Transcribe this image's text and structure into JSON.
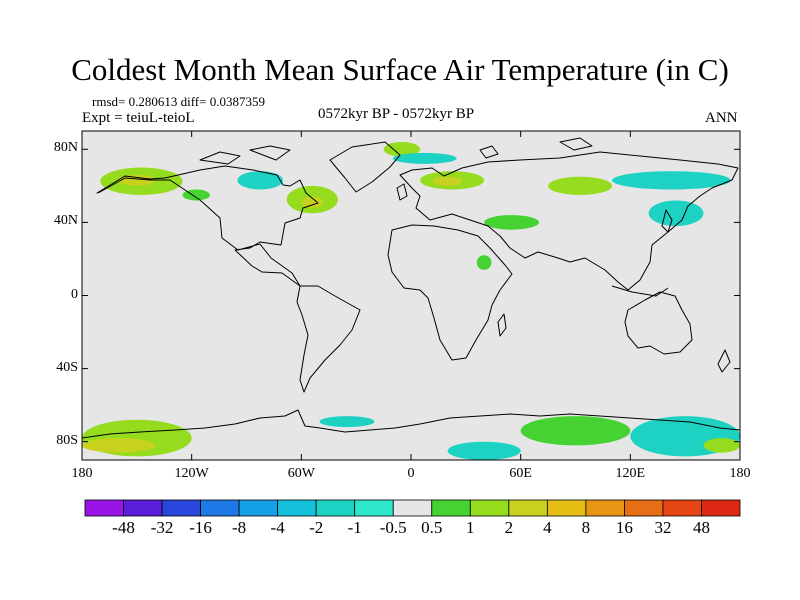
{
  "header": {
    "title": "Coldest Month Mean Surface Air Temperature (in C)",
    "stats": "rmsd= 0.280613  diff= 0.0387359",
    "expt": "Expt = teiuL-teioL",
    "period": "0572kyr BP - 0572kyr BP",
    "season": "ANN"
  },
  "chart_data": {
    "type": "heatmap",
    "title": "Coldest Month Mean Surface Air Temperature (in C)",
    "subtitle": "0572kyr BP - 0572kyr BP",
    "xlabel": "",
    "ylabel": "",
    "xlim": [
      -180,
      180
    ],
    "ylim": [
      -90,
      90
    ],
    "x_ticks": [
      {
        "value": -180,
        "label": "180"
      },
      {
        "value": -120,
        "label": "120W"
      },
      {
        "value": -60,
        "label": "60W"
      },
      {
        "value": 0,
        "label": "0"
      },
      {
        "value": 60,
        "label": "60E"
      },
      {
        "value": 120,
        "label": "120E"
      },
      {
        "value": 180,
        "label": "180"
      }
    ],
    "y_ticks": [
      {
        "value": 80,
        "label": "80N"
      },
      {
        "value": 40,
        "label": "40N"
      },
      {
        "value": 0,
        "label": "0"
      },
      {
        "value": -40,
        "label": "40S"
      },
      {
        "value": -80,
        "label": "80S"
      }
    ],
    "background_color": "#e6e6e6",
    "colorbar": {
      "boundaries": [
        "-48",
        "-32",
        "-16",
        "-8",
        "-4",
        "-2",
        "-1",
        "-0.5",
        "0.5",
        "1",
        "2",
        "4",
        "8",
        "16",
        "32",
        "48"
      ],
      "colors": [
        "#9a14e6",
        "#5a1ed8",
        "#2846dc",
        "#1e78e6",
        "#14a0e6",
        "#14c0dc",
        "#1ed2c3",
        "#2ce8c8",
        "#e6e6e6",
        "#46d232",
        "#96dc1e",
        "#c8d21e",
        "#e6be14",
        "#e69614",
        "#e66e14",
        "#e64614",
        "#dc2814"
      ]
    },
    "regions": [
      {
        "name": "Alaska-Yukon",
        "lon_range": [
          -170,
          -125
        ],
        "lat_range": [
          55,
          70
        ],
        "level": 2,
        "color": "#96dc1e"
      },
      {
        "name": "Alaska-Yukon core",
        "lon_range": [
          -160,
          -140
        ],
        "lat_range": [
          60,
          66
        ],
        "level": 4,
        "color": "#c8d21e"
      },
      {
        "name": "Western Canada",
        "lon_range": [
          -125,
          -110
        ],
        "lat_range": [
          52,
          58
        ],
        "level": 1,
        "color": "#46d232"
      },
      {
        "name": "Hudson Bay",
        "lon_range": [
          -95,
          -70
        ],
        "lat_range": [
          58,
          68
        ],
        "level": -1,
        "color": "#1ed2c3"
      },
      {
        "name": "Labrador Sea",
        "lon_range": [
          -68,
          -40
        ],
        "lat_range": [
          45,
          60
        ],
        "level": 2,
        "color": "#96dc1e"
      },
      {
        "name": "Labrador Sea core",
        "lon_range": [
          -60,
          -48
        ],
        "lat_range": [
          48,
          54
        ],
        "level": 4,
        "color": "#c8d21e"
      },
      {
        "name": "Greenland east",
        "lon_range": [
          -15,
          5
        ],
        "lat_range": [
          76,
          84
        ],
        "level": 2,
        "color": "#96dc1e"
      },
      {
        "name": "Barents Sea",
        "lon_range": [
          -10,
          25
        ],
        "lat_range": [
          72,
          78
        ],
        "level": -1,
        "color": "#1ed2c3"
      },
      {
        "name": "Scandinavia",
        "lon_range": [
          5,
          40
        ],
        "lat_range": [
          58,
          68
        ],
        "level": 2,
        "color": "#96dc1e"
      },
      {
        "name": "Scandinavia core",
        "lon_range": [
          12,
          28
        ],
        "lat_range": [
          60,
          65
        ],
        "level": 4,
        "color": "#c8d21e"
      },
      {
        "name": "Western Siberia",
        "lon_range": [
          75,
          110
        ],
        "lat_range": [
          55,
          65
        ],
        "level": 2,
        "color": "#96dc1e"
      },
      {
        "name": "Eastern Siberia",
        "lon_range": [
          110,
          175
        ],
        "lat_range": [
          58,
          68
        ],
        "level": -1,
        "color": "#1ed2c3"
      },
      {
        "name": "Caspian",
        "lon_range": [
          40,
          70
        ],
        "lat_range": [
          36,
          44
        ],
        "level": 1,
        "color": "#46d232"
      },
      {
        "name": "East Asia",
        "lon_range": [
          130,
          160
        ],
        "lat_range": [
          38,
          52
        ],
        "level": -1,
        "color": "#1ed2c3"
      },
      {
        "name": "Arabia",
        "lon_range": [
          36,
          44
        ],
        "lat_range": [
          14,
          22
        ],
        "level": 1,
        "color": "#46d232"
      },
      {
        "name": "Antarctica 180-120W",
        "lon_range": [
          -180,
          -120
        ],
        "lat_range": [
          -88,
          -68
        ],
        "level": 2,
        "color": "#96dc1e"
      },
      {
        "name": "Antarctica 180-120W core",
        "lon_range": [
          -180,
          -140
        ],
        "lat_range": [
          -86,
          -78
        ],
        "level": 4,
        "color": "#c8d21e"
      },
      {
        "name": "Weddell Sea",
        "lon_range": [
          -50,
          -20
        ],
        "lat_range": [
          -72,
          -66
        ],
        "level": -1,
        "color": "#1ed2c3"
      },
      {
        "name": "Southern Ocean 20E-60E",
        "lon_range": [
          20,
          60
        ],
        "lat_range": [
          -90,
          -80
        ],
        "level": -1,
        "color": "#1ed2c3"
      },
      {
        "name": "Southern Ocean 60E-120E",
        "lon_range": [
          60,
          120
        ],
        "lat_range": [
          -82,
          -66
        ],
        "level": 1,
        "color": "#46d232"
      },
      {
        "name": "Southern Ocean 120E-180",
        "lon_range": [
          120,
          180
        ],
        "lat_range": [
          -88,
          -66
        ],
        "level": -1,
        "color": "#1ed2c3"
      },
      {
        "name": "Ross Sea",
        "lon_range": [
          160,
          180
        ],
        "lat_range": [
          -86,
          -78
        ],
        "level": 2,
        "color": "#96dc1e"
      }
    ]
  }
}
